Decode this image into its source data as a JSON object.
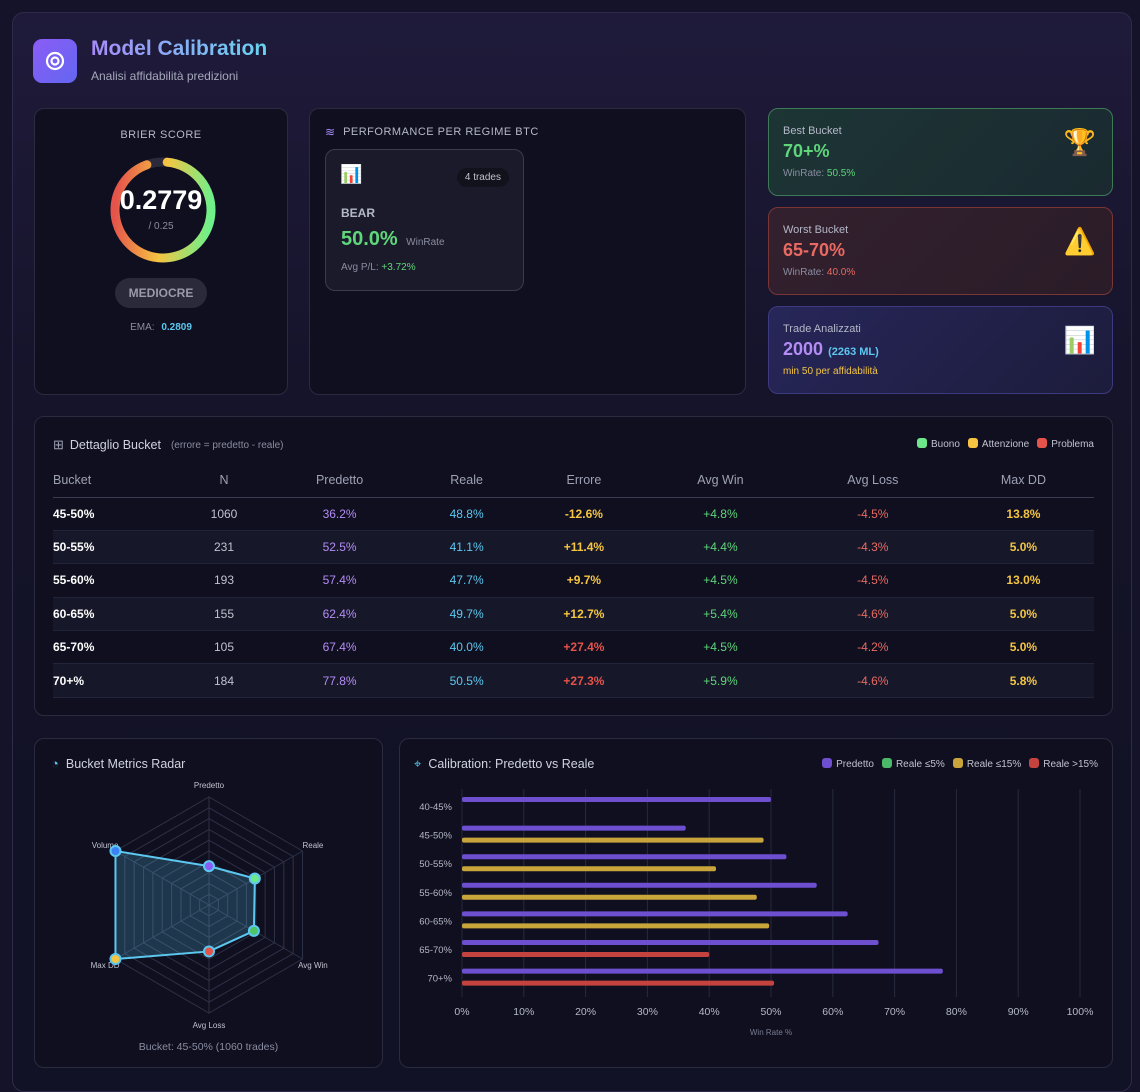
{
  "header": {
    "title": "Model Calibration",
    "subtitle": "Analisi affidabilità predizioni",
    "icon": "target-icon"
  },
  "brier": {
    "label": "BRIER SCORE",
    "value": "0.2779",
    "target": "/ 0.25",
    "rating": "MEDIOCRE",
    "ema_label": "EMA:",
    "ema_value": "0.2809",
    "gauge_fraction": 0.93
  },
  "regime": {
    "title": "PERFORMANCE PER REGIME BTC",
    "card": {
      "icon": "bar-chart-icon",
      "trades": "4 trades",
      "name": "BEAR",
      "winrate": "50.0%",
      "winrate_label": "WinRate",
      "pl_label": "Avg P/L:",
      "pl_value": "+3.72%"
    }
  },
  "stats": {
    "best": {
      "label": "Best Bucket",
      "value": "70+%",
      "sub_label": "WinRate:",
      "sub_value": "50.5%",
      "icon": "trophy-icon"
    },
    "worst": {
      "label": "Worst Bucket",
      "value": "65-70%",
      "sub_label": "WinRate:",
      "sub_value": "40.0%",
      "icon": "warning-icon"
    },
    "trades": {
      "label": "Trade Analizzati",
      "value": "2000",
      "extra": "(2263 ML)",
      "note": "min 50 per affidabilità",
      "icon": "bar-chart-icon"
    }
  },
  "table": {
    "title": "Dettaglio Bucket",
    "hint": "(errore = predetto - reale)",
    "legend": [
      {
        "label": "Buono",
        "color": "#6ee78a"
      },
      {
        "label": "Attenzione",
        "color": "#f5c542"
      },
      {
        "label": "Problema",
        "color": "#e5534b"
      }
    ],
    "columns": [
      "Bucket",
      "N",
      "Predetto",
      "Reale",
      "Errore",
      "Avg Win",
      "Avg Loss",
      "Max DD"
    ],
    "rows": [
      [
        "45-50%",
        "1060",
        "36.2%",
        "48.8%",
        "-12.6%",
        "+4.8%",
        "-4.5%",
        "13.8%"
      ],
      [
        "50-55%",
        "231",
        "52.5%",
        "41.1%",
        "+11.4%",
        "+4.4%",
        "-4.3%",
        "5.0%"
      ],
      [
        "55-60%",
        "193",
        "57.4%",
        "47.7%",
        "+9.7%",
        "+4.5%",
        "-4.5%",
        "13.0%"
      ],
      [
        "60-65%",
        "155",
        "62.4%",
        "49.7%",
        "+12.7%",
        "+5.4%",
        "-4.6%",
        "5.0%"
      ],
      [
        "65-70%",
        "105",
        "67.4%",
        "40.0%",
        "+27.4%",
        "+4.5%",
        "-4.2%",
        "5.0%"
      ],
      [
        "70+%",
        "184",
        "77.8%",
        "50.5%",
        "+27.3%",
        "+5.9%",
        "-4.6%",
        "5.8%"
      ]
    ],
    "error_status": [
      "warn",
      "warn",
      "warn",
      "warn",
      "bad",
      "bad"
    ]
  },
  "radar": {
    "title": "Bucket Metrics Radar",
    "caption": "Bucket: 45-50% (1060 trades)",
    "axes": [
      "Predetto",
      "Reale",
      "Avg Win",
      "Avg Loss",
      "Max DD",
      "Volume"
    ],
    "values": [
      36,
      49,
      48,
      43,
      100,
      100
    ],
    "point_colors": [
      "#8b5cf6",
      "#6ee78a",
      "#4cc467",
      "#e5534b",
      "#f5c542",
      "#3b82f6"
    ]
  },
  "chart_data": {
    "type": "bar",
    "title": "Calibration: Predetto vs Reale",
    "xlabel": "Win Rate %",
    "xlim": [
      0,
      100
    ],
    "categories": [
      "40-45%",
      "45-50%",
      "50-55%",
      "55-60%",
      "60-65%",
      "65-70%",
      "70+%"
    ],
    "ticks": [
      "0%",
      "10%",
      "20%",
      "30%",
      "40%",
      "50%",
      "60%",
      "70%",
      "80%",
      "90%",
      "100%"
    ],
    "legend": [
      {
        "name": "Predetto",
        "color": "#6d4fd0"
      },
      {
        "name": "Reale ≤5%",
        "color": "#4cb86a"
      },
      {
        "name": "Reale ≤15%",
        "color": "#c9a43a"
      },
      {
        "name": "Reale >15%",
        "color": "#c4433f"
      }
    ],
    "series": [
      {
        "name": "Predetto",
        "values": [
          50,
          36.2,
          52.5,
          57.4,
          62.4,
          67.4,
          77.8
        ]
      },
      {
        "name": "Reale",
        "values": [
          null,
          48.8,
          41.1,
          47.7,
          49.7,
          40.0,
          50.5
        ],
        "classes": [
          null,
          "Reale ≤15%",
          "Reale ≤15%",
          "Reale ≤15%",
          "Reale ≤15%",
          "Reale >15%",
          "Reale >15%"
        ]
      }
    ]
  }
}
